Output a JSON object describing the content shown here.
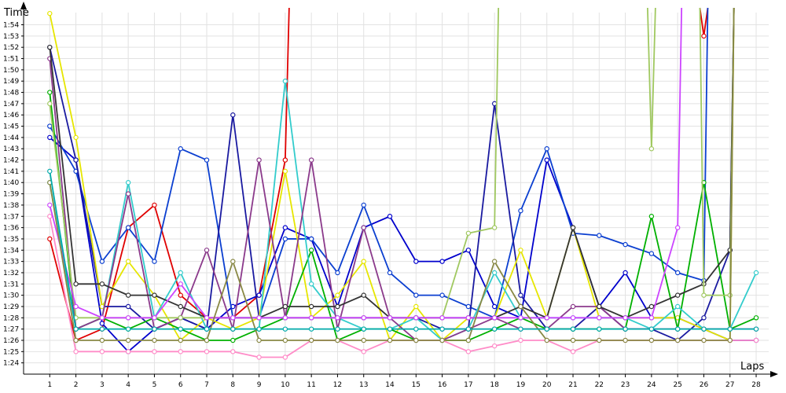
{
  "chart_data": {
    "type": "line",
    "title": "",
    "xlabel": "Laps",
    "ylabel": "Time",
    "x": [
      1,
      2,
      3,
      4,
      5,
      6,
      7,
      8,
      9,
      10,
      11,
      12,
      13,
      14,
      15,
      16,
      17,
      18,
      19,
      20,
      21,
      22,
      23,
      24,
      25,
      26,
      27,
      28
    ],
    "x_ticks": [
      "1",
      "2",
      "3",
      "4",
      "5",
      "6",
      "7",
      "8",
      "9",
      "10",
      "11",
      "12",
      "13",
      "14",
      "15",
      "16",
      "17",
      "18",
      "19",
      "20",
      "21",
      "22",
      "23",
      "24",
      "25",
      "26",
      "27",
      "28"
    ],
    "y_ticks": [
      "1:24",
      "1:25",
      "1:26",
      "1:27",
      "1:28",
      "1:29",
      "1:30",
      "1:31",
      "1:32",
      "1:33",
      "1:34",
      "1:35",
      "1:36",
      "1:37",
      "1:38",
      "1:39",
      "1:40",
      "1:41",
      "1:42",
      "1:43",
      "1:44",
      "1:45",
      "1:46",
      "1:47",
      "1:48",
      "1:49",
      "1:50",
      "1:51",
      "1:52",
      "1:53",
      "1:54"
    ],
    "ylim": [
      83,
      115.5
    ],
    "xlim": [
      0,
      28.6
    ],
    "grid": true,
    "legend": "none",
    "series": [
      {
        "color": "#e00000",
        "values": [
          95,
          86,
          87,
          96,
          98,
          90,
          88,
          88,
          90,
          102,
          null,
          null,
          null,
          null,
          null,
          null,
          null,
          null,
          null,
          null,
          null,
          null,
          null,
          null,
          null,
          113,
          null,
          null
        ]
      },
      {
        "color": "#0000cc",
        "values": [
          104,
          102,
          87.5,
          85,
          87,
          88,
          87,
          89,
          90,
          96,
          95,
          89,
          96,
          97,
          93,
          93,
          94,
          89,
          88,
          102,
          96,
          89,
          92,
          88,
          88,
          87,
          86,
          86
        ]
      },
      {
        "color": "#0b3fd0",
        "values": [
          105,
          101,
          93,
          96,
          93,
          103,
          102,
          88,
          88,
          95,
          95,
          92,
          98,
          92,
          90,
          90,
          89,
          88,
          97.5,
          103,
          95.5,
          95.3,
          94.5,
          93.7,
          92,
          91.3,
          null,
          null
        ]
      },
      {
        "color": "#1a1aa0",
        "values": [
          112,
          102,
          89,
          89,
          87,
          88,
          87,
          106,
          88,
          88,
          88,
          88,
          88,
          88,
          88,
          87,
          87,
          107,
          90,
          87,
          87,
          89,
          87,
          87,
          86,
          88,
          94,
          null
        ]
      },
      {
        "color": "#e6e600",
        "values": [
          115,
          104,
          89,
          93,
          90,
          86,
          88,
          87,
          88,
          101,
          88,
          90,
          93,
          86,
          89,
          86,
          88,
          88,
          94,
          88,
          96,
          88,
          88,
          88,
          88,
          87,
          86,
          null
        ]
      },
      {
        "color": "#00b000",
        "values": [
          108,
          87,
          88,
          87,
          88,
          87,
          86,
          86,
          87,
          88,
          94,
          86,
          87,
          87,
          86,
          86,
          86,
          87,
          88,
          87,
          87,
          87,
          87,
          97,
          87,
          100,
          87,
          88
        ]
      },
      {
        "color": "#33cccc",
        "values": [
          100,
          87,
          88,
          100,
          88,
          92,
          87,
          87,
          87,
          109,
          91,
          88,
          87,
          87,
          88,
          86,
          87,
          92,
          88,
          88,
          88,
          88,
          88,
          87,
          89,
          87,
          87,
          92
        ]
      },
      {
        "color": "#8b3a8b",
        "values": [
          111,
          87,
          88,
          99,
          87,
          88,
          94,
          87,
          102,
          88,
          102,
          87,
          96,
          88,
          86,
          86,
          87,
          88,
          87,
          87,
          89,
          89,
          87,
          87,
          87,
          87,
          87,
          87
        ]
      },
      {
        "color": "#ff8cc8",
        "values": [
          97,
          85,
          85,
          85,
          85,
          85,
          85,
          85,
          84.5,
          84.5,
          86,
          86,
          85,
          86,
          86,
          86,
          85,
          85.5,
          86,
          86,
          85,
          86,
          86,
          86,
          86,
          86,
          86,
          86
        ]
      },
      {
        "color": "#333333",
        "values": [
          112,
          91,
          91,
          90,
          90,
          89,
          88,
          88,
          88,
          89,
          89,
          89,
          90,
          88,
          88,
          88,
          88,
          88,
          89,
          88,
          96,
          89,
          88,
          89,
          90,
          91,
          94,
          null
        ]
      },
      {
        "color": "#a0c860",
        "values": [
          107,
          88,
          88,
          88,
          88,
          88,
          88,
          88,
          88,
          88,
          88,
          88,
          88,
          88,
          88,
          88,
          95.5,
          96,
          null,
          null,
          null,
          null,
          null,
          103,
          null,
          90,
          90,
          null
        ]
      },
      {
        "color": "#cc44ff",
        "values": [
          98,
          89,
          88,
          88,
          88,
          91,
          88,
          88,
          88,
          88,
          88,
          88,
          88,
          88,
          88,
          88,
          88,
          88,
          88,
          88,
          88,
          88,
          88,
          88,
          96,
          null,
          null,
          null
        ]
      },
      {
        "color": "#888844",
        "values": [
          100,
          86,
          86,
          86,
          86,
          86,
          86,
          93,
          86,
          86,
          86,
          86,
          86,
          86,
          86,
          86,
          86,
          93,
          89,
          86,
          86,
          86,
          86,
          86,
          86,
          86,
          86,
          null
        ]
      },
      {
        "color": "#00aaaa",
        "values": [
          101,
          87,
          87,
          87,
          87,
          87,
          87,
          87,
          87,
          87,
          87,
          87,
          87,
          87,
          87,
          87,
          87,
          87,
          87,
          87,
          87,
          87,
          87,
          87,
          87,
          87,
          87,
          87
        ]
      }
    ]
  }
}
